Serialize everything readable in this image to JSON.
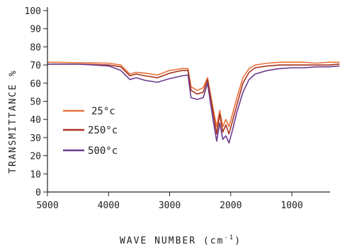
{
  "chart_data": {
    "type": "line",
    "title": "",
    "xlabel": "WAVE NUMBER (cm",
    "xlabel_sup": "-1",
    "xlabel_close": ")",
    "ylabel": "TRANSMITTANCE %",
    "xlim": [
      5000,
      200
    ],
    "ylim": [
      0,
      100
    ],
    "x_reversed": true,
    "x_ticks": [
      "5000",
      "4000",
      "3000",
      "2000",
      "1000"
    ],
    "x_tick_values": [
      5000,
      4000,
      3000,
      2000,
      1000
    ],
    "y_ticks": [
      "0",
      "10",
      "20",
      "30",
      "40",
      "50",
      "60",
      "70",
      "80",
      "90",
      "100"
    ],
    "y_tick_values": [
      0,
      10,
      20,
      30,
      40,
      50,
      60,
      70,
      80,
      90,
      100
    ],
    "legend_position": "left-middle",
    "grid": false,
    "series": [
      {
        "name": "25°c",
        "color": "#e8733a",
        "points": [
          [
            5000,
            71.5
          ],
          [
            4500,
            71.3
          ],
          [
            4000,
            71
          ],
          [
            3800,
            70
          ],
          [
            3650,
            65
          ],
          [
            3550,
            66
          ],
          [
            3400,
            65.5
          ],
          [
            3200,
            64.5
          ],
          [
            3000,
            67
          ],
          [
            2800,
            68
          ],
          [
            2700,
            68
          ],
          [
            2650,
            58
          ],
          [
            2550,
            56
          ],
          [
            2450,
            57.5
          ],
          [
            2380,
            63
          ],
          [
            2300,
            48
          ],
          [
            2230,
            36
          ],
          [
            2180,
            45
          ],
          [
            2130,
            36
          ],
          [
            2080,
            40
          ],
          [
            2030,
            36
          ],
          [
            1980,
            42
          ],
          [
            1900,
            52
          ],
          [
            1800,
            63
          ],
          [
            1700,
            68
          ],
          [
            1600,
            70
          ],
          [
            1400,
            71
          ],
          [
            1200,
            71.5
          ],
          [
            1000,
            71.5
          ],
          [
            800,
            71.5
          ],
          [
            600,
            71
          ],
          [
            400,
            71.5
          ],
          [
            220,
            71.5
          ]
        ]
      },
      {
        "name": "250°c",
        "color": "#a8321e",
        "points": [
          [
            5000,
            70.5
          ],
          [
            4500,
            70.5
          ],
          [
            4000,
            70
          ],
          [
            3800,
            69
          ],
          [
            3650,
            64
          ],
          [
            3550,
            65
          ],
          [
            3400,
            64
          ],
          [
            3200,
            63
          ],
          [
            3000,
            65.5
          ],
          [
            2800,
            67
          ],
          [
            2700,
            67
          ],
          [
            2650,
            56
          ],
          [
            2550,
            54
          ],
          [
            2450,
            55
          ],
          [
            2380,
            62
          ],
          [
            2300,
            46
          ],
          [
            2230,
            32
          ],
          [
            2180,
            43
          ],
          [
            2130,
            33
          ],
          [
            2080,
            37
          ],
          [
            2030,
            32
          ],
          [
            1980,
            38
          ],
          [
            1900,
            48
          ],
          [
            1800,
            60
          ],
          [
            1700,
            66
          ],
          [
            1600,
            68.5
          ],
          [
            1400,
            69.5
          ],
          [
            1200,
            70
          ],
          [
            1000,
            70
          ],
          [
            800,
            70
          ],
          [
            600,
            70
          ],
          [
            400,
            70
          ],
          [
            220,
            70.5
          ]
        ]
      },
      {
        "name": "500°c",
        "color": "#6b3a8e",
        "points": [
          [
            5000,
            70.5
          ],
          [
            4500,
            70.5
          ],
          [
            4000,
            69.5
          ],
          [
            3800,
            67
          ],
          [
            3650,
            62
          ],
          [
            3550,
            63
          ],
          [
            3400,
            61.5
          ],
          [
            3200,
            60.5
          ],
          [
            3000,
            62.5
          ],
          [
            2800,
            64
          ],
          [
            2700,
            64.5
          ],
          [
            2650,
            52
          ],
          [
            2550,
            51
          ],
          [
            2450,
            52
          ],
          [
            2380,
            60
          ],
          [
            2300,
            42
          ],
          [
            2230,
            28
          ],
          [
            2180,
            38
          ],
          [
            2130,
            29
          ],
          [
            2080,
            31
          ],
          [
            2030,
            27
          ],
          [
            1980,
            33
          ],
          [
            1900,
            44
          ],
          [
            1800,
            55
          ],
          [
            1700,
            62
          ],
          [
            1600,
            65
          ],
          [
            1400,
            67
          ],
          [
            1200,
            68
          ],
          [
            1000,
            68.5
          ],
          [
            800,
            68.5
          ],
          [
            600,
            69
          ],
          [
            400,
            69
          ],
          [
            220,
            69.5
          ]
        ]
      }
    ]
  }
}
